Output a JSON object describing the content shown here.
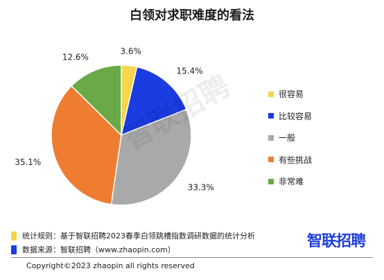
{
  "title": "白领对求职难度的看法",
  "watermark": "智联招聘",
  "chart_data": {
    "type": "pie",
    "title": "白领对求职难度的看法",
    "slices": [
      {
        "label": "很容易",
        "value": 3.6,
        "display": "3.6%",
        "color": "#f7d44c"
      },
      {
        "label": "比较容易",
        "value": 15.4,
        "display": "15.4%",
        "color": "#1a3ce0"
      },
      {
        "label": "一般",
        "value": 33.3,
        "display": "33.3%",
        "color": "#a9a9a9"
      },
      {
        "label": "有些挑战",
        "value": 35.1,
        "display": "35.1%",
        "color": "#ee7d31"
      },
      {
        "label": "非常难",
        "value": 12.6,
        "display": "12.6%",
        "color": "#6aaa46"
      }
    ],
    "start_angle_deg": 0,
    "direction": "clockwise",
    "legend_position": "right"
  },
  "notes": [
    {
      "text": "统计规则：基于智联招聘2023春季白领跳槽指数调研数据的统计分析",
      "color": "#f7d44c"
    },
    {
      "text": "数据来源：智联招聘（www.zhaopin.com）",
      "color": "#1a3ce0"
    }
  ],
  "brand": "智联招聘",
  "copyright": "Copyright©2023 zhaopin all rights reserved"
}
